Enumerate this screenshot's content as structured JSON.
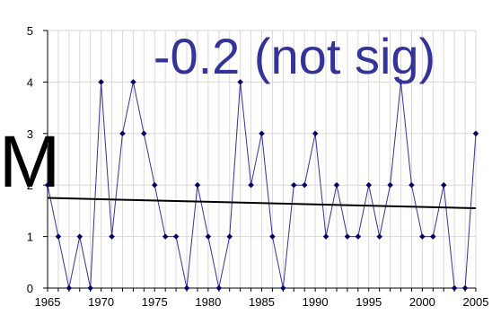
{
  "chart_data": {
    "type": "line",
    "x": [
      1965,
      1966,
      1967,
      1968,
      1969,
      1970,
      1971,
      1972,
      1973,
      1974,
      1975,
      1976,
      1977,
      1978,
      1979,
      1980,
      1981,
      1982,
      1983,
      1984,
      1985,
      1986,
      1987,
      1988,
      1989,
      1990,
      1991,
      1992,
      1993,
      1994,
      1995,
      1996,
      1997,
      1998,
      1999,
      2000,
      2001,
      2002,
      2003,
      2004,
      2005
    ],
    "series": [
      {
        "values": [
          2,
          1,
          0,
          1,
          0,
          4,
          1,
          3,
          4,
          3,
          2,
          1,
          1,
          0,
          2,
          1,
          0,
          1,
          4,
          2,
          3,
          1,
          0,
          2,
          2,
          3,
          1,
          2,
          1,
          1,
          2,
          1,
          2,
          4,
          2,
          1,
          1,
          2,
          0,
          0,
          3
        ],
        "color": "#333399",
        "marker": "diamond"
      }
    ],
    "trend": {
      "start": [
        1965,
        1.75
      ],
      "end": [
        2005,
        1.55
      ],
      "color": "#000000"
    },
    "xticks": [
      1965,
      1970,
      1975,
      1980,
      1985,
      1990,
      1995,
      2000,
      2005
    ],
    "yticks": [
      0,
      1,
      2,
      3,
      4,
      5
    ],
    "xlim": [
      1965,
      2005
    ],
    "ylim": [
      0,
      5
    ],
    "grid": true,
    "grid_color": "#d9d9d9",
    "annotation": "-0.2 (not sig)",
    "side_label": "M",
    "title": "",
    "xlabel": "",
    "ylabel": ""
  }
}
